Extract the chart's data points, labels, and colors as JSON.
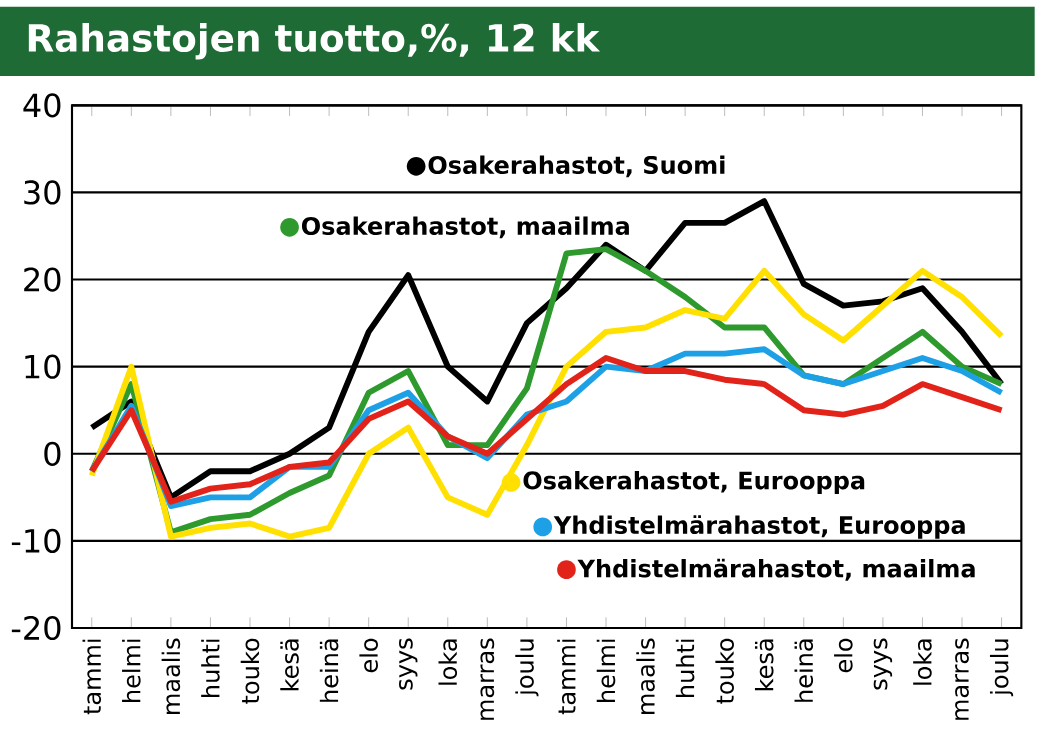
{
  "chart_data": {
    "type": "line",
    "title": "Rahastojen tuotto,%, 12 kk",
    "categories": [
      "tammi",
      "helmi",
      "maalis",
      "huhti",
      "touko",
      "kesä",
      "heinä",
      "elo",
      "syys",
      "loka",
      "marras",
      "joulu",
      "tammi",
      "helmi",
      "maalis",
      "huhti",
      "touko",
      "kesä",
      "heinä",
      "elo",
      "syys",
      "loka",
      "marras",
      "joulu"
    ],
    "series": [
      {
        "name": "Osakerahastot, Suomi",
        "color": "#000000",
        "values": [
          3,
          6,
          -5,
          -2,
          -2,
          0,
          3,
          14,
          20.5,
          10,
          6,
          15,
          19,
          24,
          21,
          26.5,
          26.5,
          29,
          19.5,
          17,
          17.5,
          19,
          14,
          8
        ]
      },
      {
        "name": "Osakerahastot, maailma",
        "color": "#2e9a2e",
        "values": [
          -2,
          8,
          -9,
          -7.5,
          -7,
          -4.5,
          -2.5,
          7,
          9.5,
          1,
          1,
          7.5,
          23,
          23.5,
          21,
          18,
          14.5,
          14.5,
          9,
          8,
          11,
          14,
          10,
          8
        ]
      },
      {
        "name": "Osakerahastot, Eurooppa",
        "color": "#ffe000",
        "values": [
          -2.5,
          10,
          -9.5,
          -8.5,
          -8,
          -9.5,
          -8.5,
          0,
          3,
          -5,
          -7,
          1,
          10,
          14,
          14.5,
          16.5,
          15.5,
          21,
          16,
          13,
          17,
          21,
          18,
          13.5
        ]
      },
      {
        "name": "Yhdistelmärahastot, Eurooppa",
        "color": "#1ea0e6",
        "values": [
          -2,
          5.5,
          -6,
          -5,
          -5,
          -1.5,
          -1.5,
          5,
          7,
          2,
          -0.5,
          4.5,
          6,
          10,
          9.5,
          11.5,
          11.5,
          12,
          9,
          8,
          9.5,
          11,
          9.5,
          7
        ]
      },
      {
        "name": "Yhdistelmärahastot, maailma",
        "color": "#e2231a",
        "values": [
          -2,
          5,
          -5.5,
          -4,
          -3.5,
          -1.5,
          -1,
          4,
          6,
          2,
          0,
          4,
          8,
          11,
          9.5,
          9.5,
          8.5,
          8,
          5,
          4.5,
          5.5,
          8,
          6.5,
          5
        ]
      }
    ],
    "ylim": [
      -20,
      40
    ],
    "yticks": [
      -20,
      -10,
      0,
      10,
      20,
      30,
      40
    ],
    "grid": "y",
    "legend": "right",
    "marker": "none",
    "line_style": "solid"
  }
}
